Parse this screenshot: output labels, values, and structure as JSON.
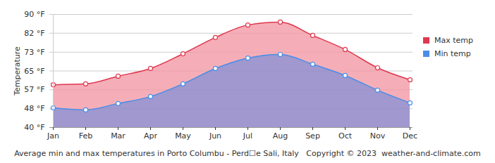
{
  "chart_data": {
    "type": "area",
    "title": "Average min and max temperatures in Porto Columbu - Perd☐e Sali, Italy",
    "annotations": [
      "Copyright © 2023  weather-and-climate.com"
    ],
    "y_label": "Temperature",
    "categories": [
      "Jan",
      "Feb",
      "Mar",
      "Apr",
      "May",
      "Jun",
      "Jul",
      "Aug",
      "Sep",
      "Oct",
      "Nov",
      "Dec"
    ],
    "series": [
      {
        "name": "Max temp",
        "color": "#e0384e",
        "values": [
          58.9,
          59.3,
          62.7,
          66.1,
          72.6,
          79.8,
          85.3,
          86.6,
          80.7,
          74.5,
          66.4,
          61.1
        ]
      },
      {
        "name": "Min temp",
        "color": "#4a8ee8",
        "values": [
          48.7,
          47.8,
          50.6,
          53.7,
          59.3,
          66.1,
          70.7,
          72.3,
          68.0,
          63.0,
          56.5,
          50.9
        ]
      }
    ],
    "ylim": [
      40,
      90
    ],
    "yticks": [
      {
        "value": 40,
        "label": "40 °F"
      },
      {
        "value": 48.3,
        "label": "48 °F"
      },
      {
        "value": 56.7,
        "label": "57 °F"
      },
      {
        "value": 65,
        "label": "65 °F"
      },
      {
        "value": 73.3,
        "label": "73 °F"
      },
      {
        "value": 81.7,
        "label": "82 °F"
      },
      {
        "value": 90,
        "label": "90 °F"
      }
    ],
    "grid": true,
    "legend": "top-right",
    "marker": "circle"
  }
}
